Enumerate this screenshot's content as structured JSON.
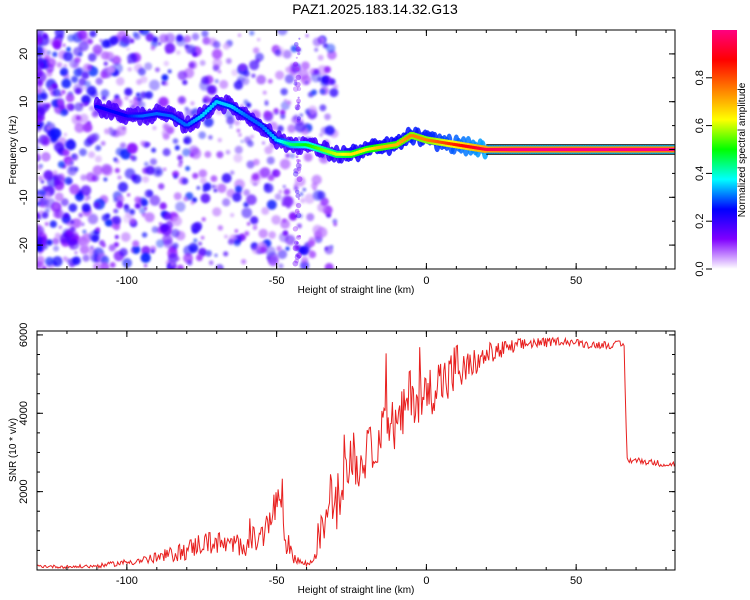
{
  "title": "PAZ1.2025.183.14.32.G13",
  "chart_data": [
    {
      "type": "heatmap",
      "xlabel": "Height of straight line (km)",
      "ylabel": "Frequency (Hz)",
      "xlim": [
        -130,
        83
      ],
      "ylim": [
        -25,
        25
      ],
      "xticks": [
        -100,
        -50,
        0,
        50
      ],
      "yticks": [
        20,
        10,
        0,
        -10,
        -20
      ],
      "colorbar": {
        "label": "Normalized spectral amplitude",
        "range": [
          0,
          1
        ],
        "ticks": [
          "0.0",
          "0.2",
          "0.4",
          "0.6",
          "0.8"
        ],
        "colors": [
          "#ffffff",
          "#8000ff",
          "#0000ff",
          "#00ffff",
          "#00ff00",
          "#ffff00",
          "#ff8000",
          "#ff0000",
          "#ff0080"
        ]
      },
      "ridge": {
        "x": [
          -110,
          -105,
          -100,
          -95,
          -90,
          -85,
          -80,
          -75,
          -70,
          -65,
          -60,
          -55,
          -50,
          -45,
          -40,
          -35,
          -30,
          -25,
          -20,
          -15,
          -10,
          -5,
          0,
          5,
          10,
          15,
          20,
          30,
          40,
          50,
          60,
          70,
          83
        ],
        "y": [
          9,
          8,
          7,
          7,
          7.5,
          7,
          5,
          7,
          10,
          9,
          7,
          5,
          2,
          1,
          1,
          0,
          -1,
          -1,
          0,
          0.5,
          1,
          3,
          2,
          1.5,
          1,
          0.5,
          0,
          0,
          0,
          0,
          0,
          0,
          0
        ],
        "amplitude": [
          0.25,
          0.25,
          0.25,
          0.3,
          0.3,
          0.3,
          0.3,
          0.35,
          0.35,
          0.35,
          0.3,
          0.3,
          0.35,
          0.45,
          0.5,
          0.55,
          0.6,
          0.65,
          0.65,
          0.7,
          0.7,
          0.75,
          0.75,
          0.8,
          0.85,
          0.9,
          0.95,
          1.0,
          1.0,
          1.0,
          1.0,
          1.0,
          1.0
        ]
      }
    },
    {
      "type": "line",
      "xlabel": "Height of straight line (km)",
      "ylabel": "SNR (10 * v/v)",
      "xlim": [
        -130,
        83
      ],
      "ylim": [
        0,
        6100
      ],
      "xticks": [
        -100,
        -50,
        0,
        50
      ],
      "yticks": [
        2000,
        4000,
        6000
      ],
      "color": "#e8201f",
      "series": [
        {
          "x": [
            -130,
            -120,
            -110,
            -100,
            -90,
            -80,
            -75,
            -70,
            -65,
            -60,
            -55,
            -52,
            -50,
            -47,
            -45,
            -42,
            -40,
            -38,
            -36,
            -34,
            -32,
            -30,
            -28,
            -25,
            -22,
            -20,
            -18,
            -15,
            -12,
            -10,
            -8,
            -5,
            -3,
            0,
            3,
            5,
            8,
            10,
            13,
            15,
            18,
            20,
            25,
            30,
            35,
            40,
            45,
            50,
            55,
            60,
            65,
            66,
            67,
            70,
            75,
            80,
            83
          ],
          "y": [
            100,
            80,
            100,
            200,
            300,
            500,
            700,
            700,
            600,
            700,
            800,
            1200,
            1800,
            800,
            400,
            200,
            150,
            200,
            800,
            1200,
            1900,
            1600,
            2300,
            2800,
            2600,
            3000,
            3100,
            3500,
            3800,
            3600,
            3900,
            4600,
            4300,
            4400,
            4800,
            4800,
            4900,
            5200,
            5000,
            5300,
            5300,
            5500,
            5600,
            5700,
            5800,
            5800,
            5850,
            5800,
            5750,
            5750,
            5750,
            5700,
            2800,
            2800,
            2750,
            2700,
            2700
          ],
          "jitter": [
            40,
            40,
            50,
            80,
            150,
            250,
            300,
            300,
            300,
            350,
            400,
            600,
            500,
            400,
            200,
            100,
            80,
            150,
            400,
            500,
            600,
            600,
            600,
            600,
            600,
            600,
            600,
            600,
            700,
            700,
            700,
            700,
            700,
            700,
            700,
            700,
            700,
            700,
            500,
            400,
            300,
            300,
            250,
            200,
            150,
            120,
            100,
            100,
            100,
            100,
            100,
            100,
            80,
            80,
            80,
            80,
            80
          ]
        }
      ]
    }
  ]
}
